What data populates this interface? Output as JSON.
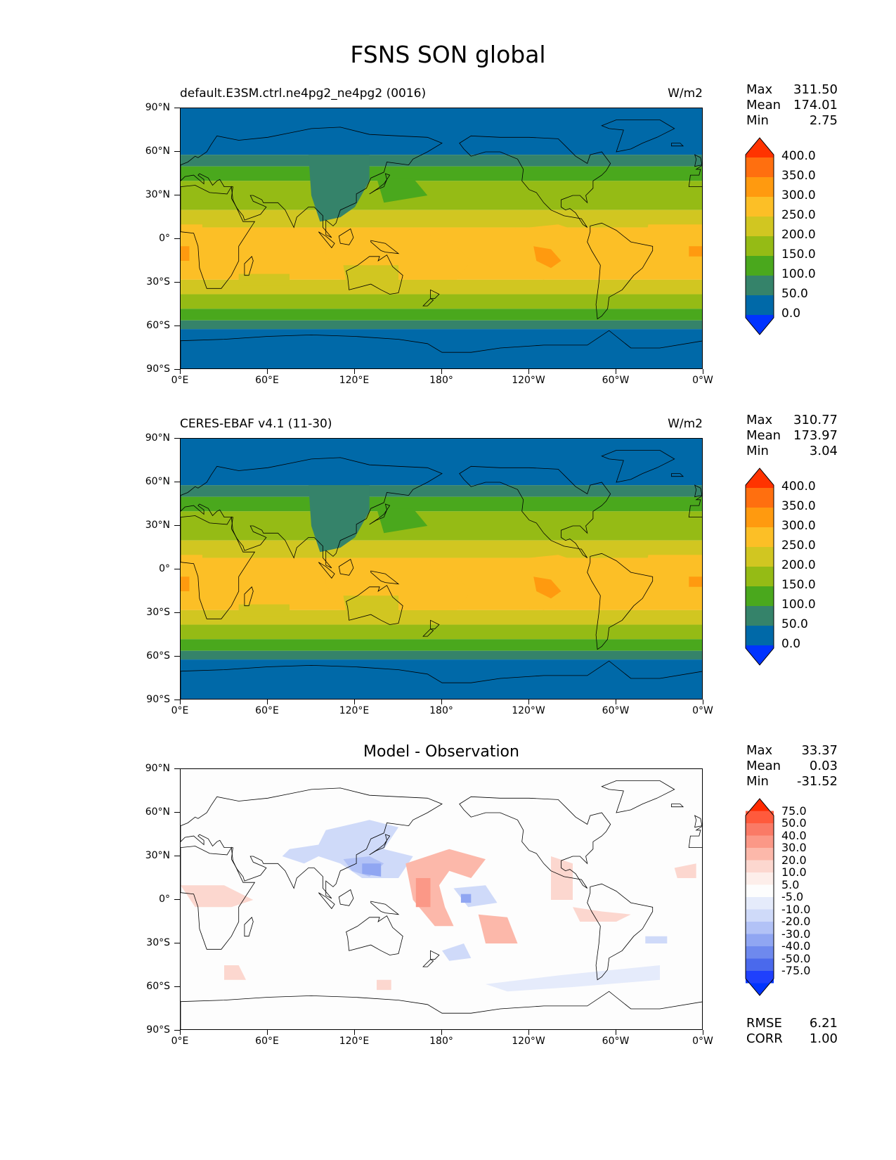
{
  "figure": {
    "title": "FSNS SON global"
  },
  "lon_ticks": [
    "0°E",
    "60°E",
    "120°E",
    "180°",
    "120°W",
    "60°W",
    "0°W"
  ],
  "lat_ticks": [
    "90°N",
    "60°N",
    "30°N",
    "0°",
    "30°S",
    "60°S",
    "90°S"
  ],
  "panels": [
    {
      "title": "default.E3SM.ctrl.ne4pg2_ne4pg2 (0016)",
      "units": "W/m2",
      "stats": {
        "max_label": "Max",
        "max": "311.50",
        "mean_label": "Mean",
        "mean": "174.01",
        "min_label": "Min",
        "min": "2.75"
      },
      "colorbar": {
        "labels": [
          "400.0",
          "350.0",
          "300.0",
          "250.0",
          "200.0",
          "150.0",
          "100.0",
          "50.0",
          "0.0"
        ],
        "colors": [
          "#ff3300",
          "#ff6f0f",
          "#ff9a0f",
          "#fcbf26",
          "#d1c621",
          "#95bb15",
          "#4aa81d",
          "#35836a",
          "#0069a8",
          "#0033ff"
        ]
      }
    },
    {
      "title": "CERES-EBAF v4.1 (11-30)",
      "units": "W/m2",
      "stats": {
        "max_label": "Max",
        "max": "310.77",
        "mean_label": "Mean",
        "mean": "173.97",
        "min_label": "Min",
        "min": "3.04"
      },
      "colorbar": {
        "labels": [
          "400.0",
          "350.0",
          "300.0",
          "250.0",
          "200.0",
          "150.0",
          "100.0",
          "50.0",
          "0.0"
        ],
        "colors": [
          "#ff3300",
          "#ff6f0f",
          "#ff9a0f",
          "#fcbf26",
          "#d1c621",
          "#95bb15",
          "#4aa81d",
          "#35836a",
          "#0069a8",
          "#0033ff"
        ]
      }
    },
    {
      "title": "Model - Observation",
      "units": "",
      "stats": {
        "max_label": "Max",
        "max": "33.37",
        "mean_label": "Mean",
        "mean": "0.03",
        "min_label": "Min",
        "min": "-31.52"
      },
      "colorbar": {
        "labels": [
          "75.0",
          "50.0",
          "40.0",
          "30.0",
          "20.0",
          "10.0",
          "5.0",
          "-5.0",
          "-10.0",
          "-20.0",
          "-30.0",
          "-40.0",
          "-50.0",
          "-75.0"
        ],
        "colors": [
          "#ff2a00",
          "#ff5a3c",
          "#fa7a66",
          "#fb9887",
          "#fcb8aa",
          "#fcd7cf",
          "#fdeeea",
          "#fdfdfd",
          "#e5ebfb",
          "#cfdaf9",
          "#b2c2f6",
          "#90a6f2",
          "#6e89ee",
          "#4a69ec",
          "#1f40fd",
          "#0033ff"
        ]
      },
      "extra_stats": {
        "rmse_label": "RMSE",
        "rmse": "6.21",
        "corr_label": "CORR",
        "corr": "1.00"
      }
    }
  ],
  "chart_data": [
    {
      "type": "heatmap",
      "title": "default.E3SM.ctrl.ne4pg2_ne4pg2 (0016)",
      "units": "W/m2",
      "projection": "PlateCarree",
      "xlim": [
        0,
        360
      ],
      "ylim": [
        -90,
        90
      ],
      "levels": [
        0,
        50,
        100,
        150,
        200,
        250,
        300,
        350,
        400
      ],
      "lat": [
        -90,
        -80,
        -70,
        -60,
        -50,
        -40,
        -30,
        -20,
        -10,
        0,
        10,
        20,
        30,
        40,
        50,
        60,
        70,
        80,
        90
      ],
      "zonal_mean_approx": [
        20,
        30,
        45,
        95,
        140,
        190,
        235,
        255,
        250,
        235,
        220,
        200,
        180,
        140,
        110,
        75,
        40,
        25,
        20
      ],
      "max": 311.5,
      "mean": 174.01,
      "min": 2.75
    },
    {
      "type": "heatmap",
      "title": "CERES-EBAF v4.1 (11-30)",
      "units": "W/m2",
      "projection": "PlateCarree",
      "xlim": [
        0,
        360
      ],
      "ylim": [
        -90,
        90
      ],
      "levels": [
        0,
        50,
        100,
        150,
        200,
        250,
        300,
        350,
        400
      ],
      "lat": [
        -90,
        -80,
        -70,
        -60,
        -50,
        -40,
        -30,
        -20,
        -10,
        0,
        10,
        20,
        30,
        40,
        50,
        60,
        70,
        80,
        90
      ],
      "zonal_mean_approx": [
        20,
        30,
        45,
        95,
        140,
        190,
        235,
        255,
        250,
        235,
        220,
        200,
        180,
        140,
        110,
        75,
        40,
        25,
        20
      ],
      "max": 310.77,
      "mean": 173.97,
      "min": 3.04
    },
    {
      "type": "heatmap",
      "title": "Model - Observation",
      "projection": "PlateCarree",
      "xlim": [
        0,
        360
      ],
      "ylim": [
        -90,
        90
      ],
      "levels": [
        -75,
        -50,
        -40,
        -30,
        -20,
        -10,
        -5,
        5,
        10,
        20,
        30,
        40,
        50,
        75
      ],
      "max": 33.37,
      "mean": 0.03,
      "min": -31.52,
      "rmse": 6.21,
      "corr": 1.0
    }
  ]
}
